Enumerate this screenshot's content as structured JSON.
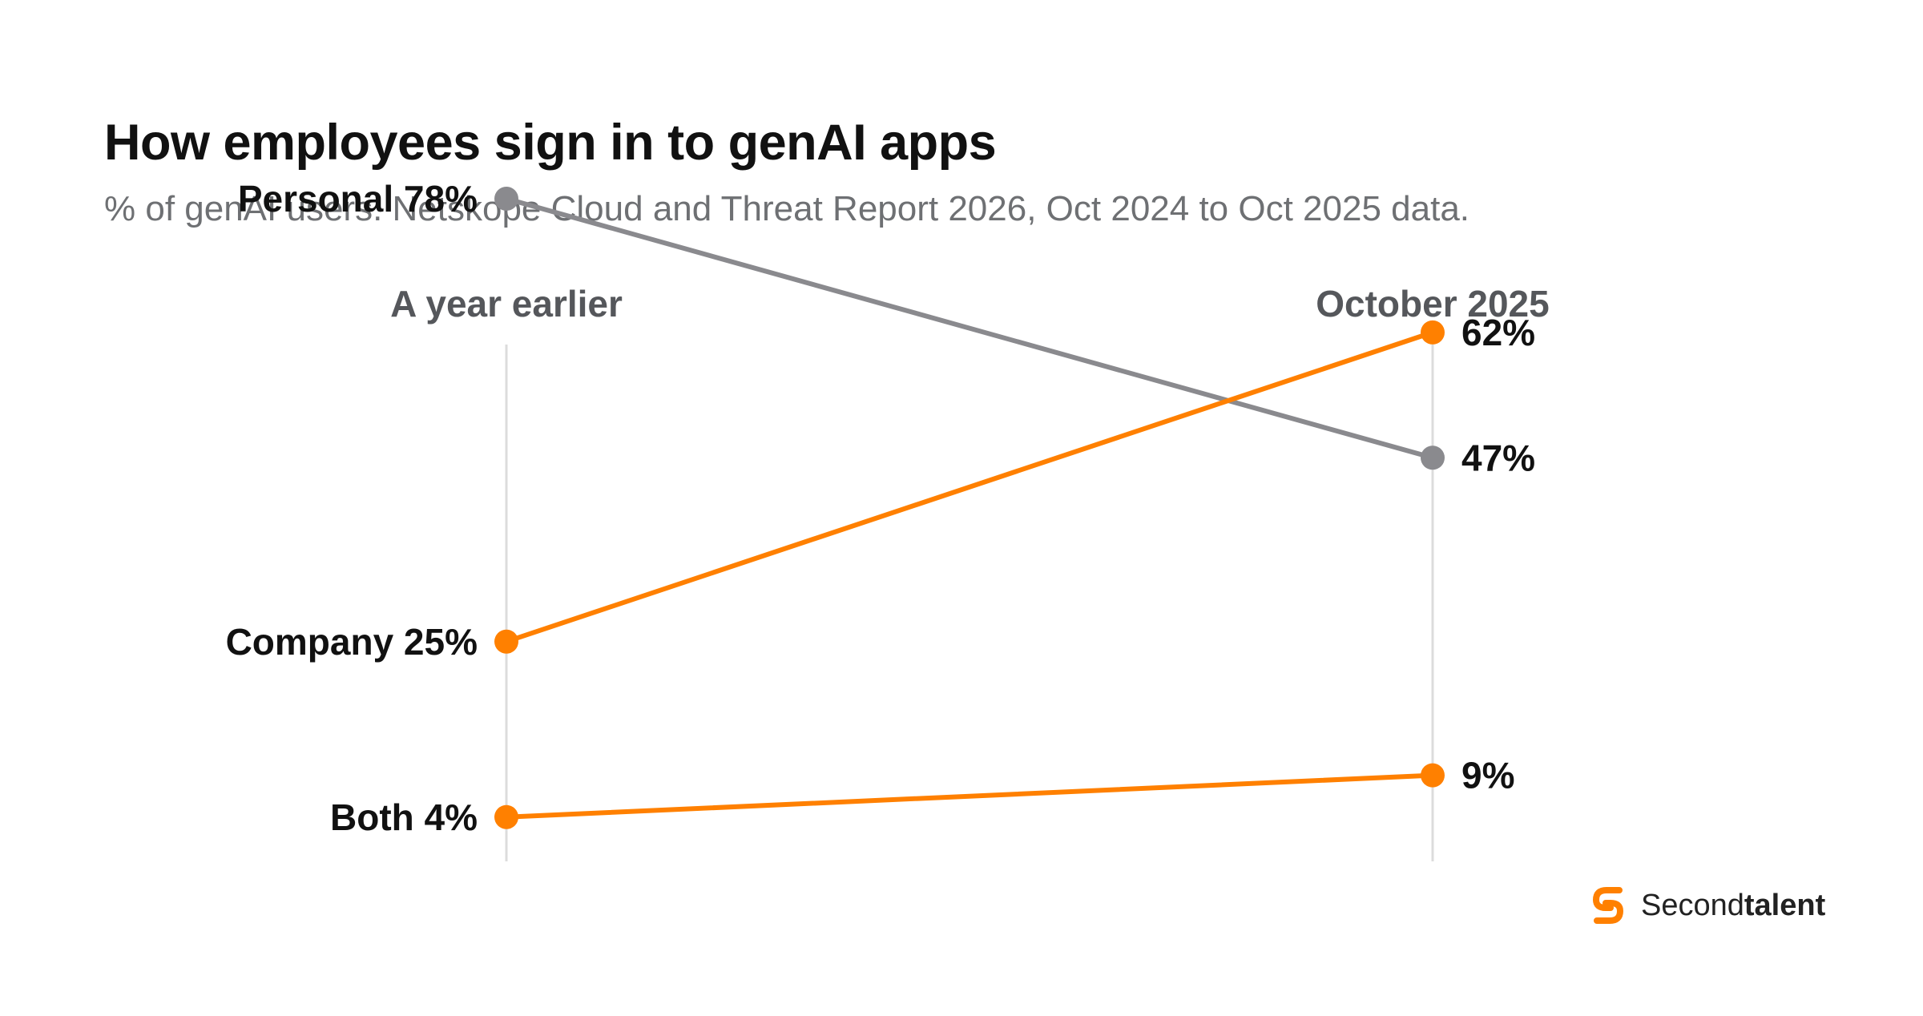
{
  "chart_data": {
    "type": "line",
    "title": "How employees sign in to genAI apps",
    "subtitle": "% of genAI users. Netskope Cloud and Threat Report 2026, Oct 2024 to Oct 2025 data.",
    "x": [
      "A year earlier",
      "October 2025"
    ],
    "ylim": [
      0,
      100
    ],
    "grid": false,
    "series": [
      {
        "name": "Personal",
        "values": [
          78,
          47
        ],
        "color": "#8a8a8e",
        "start_label": "Personal 78%",
        "end_label": "47%"
      },
      {
        "name": "Company",
        "values": [
          25,
          62
        ],
        "color": "#ff8000",
        "start_label": "Company 25%",
        "end_label": "62%"
      },
      {
        "name": "Both",
        "values": [
          4,
          9
        ],
        "color": "#ff8000",
        "start_label": "Both 4%",
        "end_label": "9%"
      }
    ]
  },
  "brand": {
    "name_regular": "Second",
    "name_bold": "talent",
    "color": "#ff8000"
  },
  "colors": {
    "axis_line": "#dcdcdc",
    "column_header": "#55575b",
    "label_text": "#111111"
  }
}
